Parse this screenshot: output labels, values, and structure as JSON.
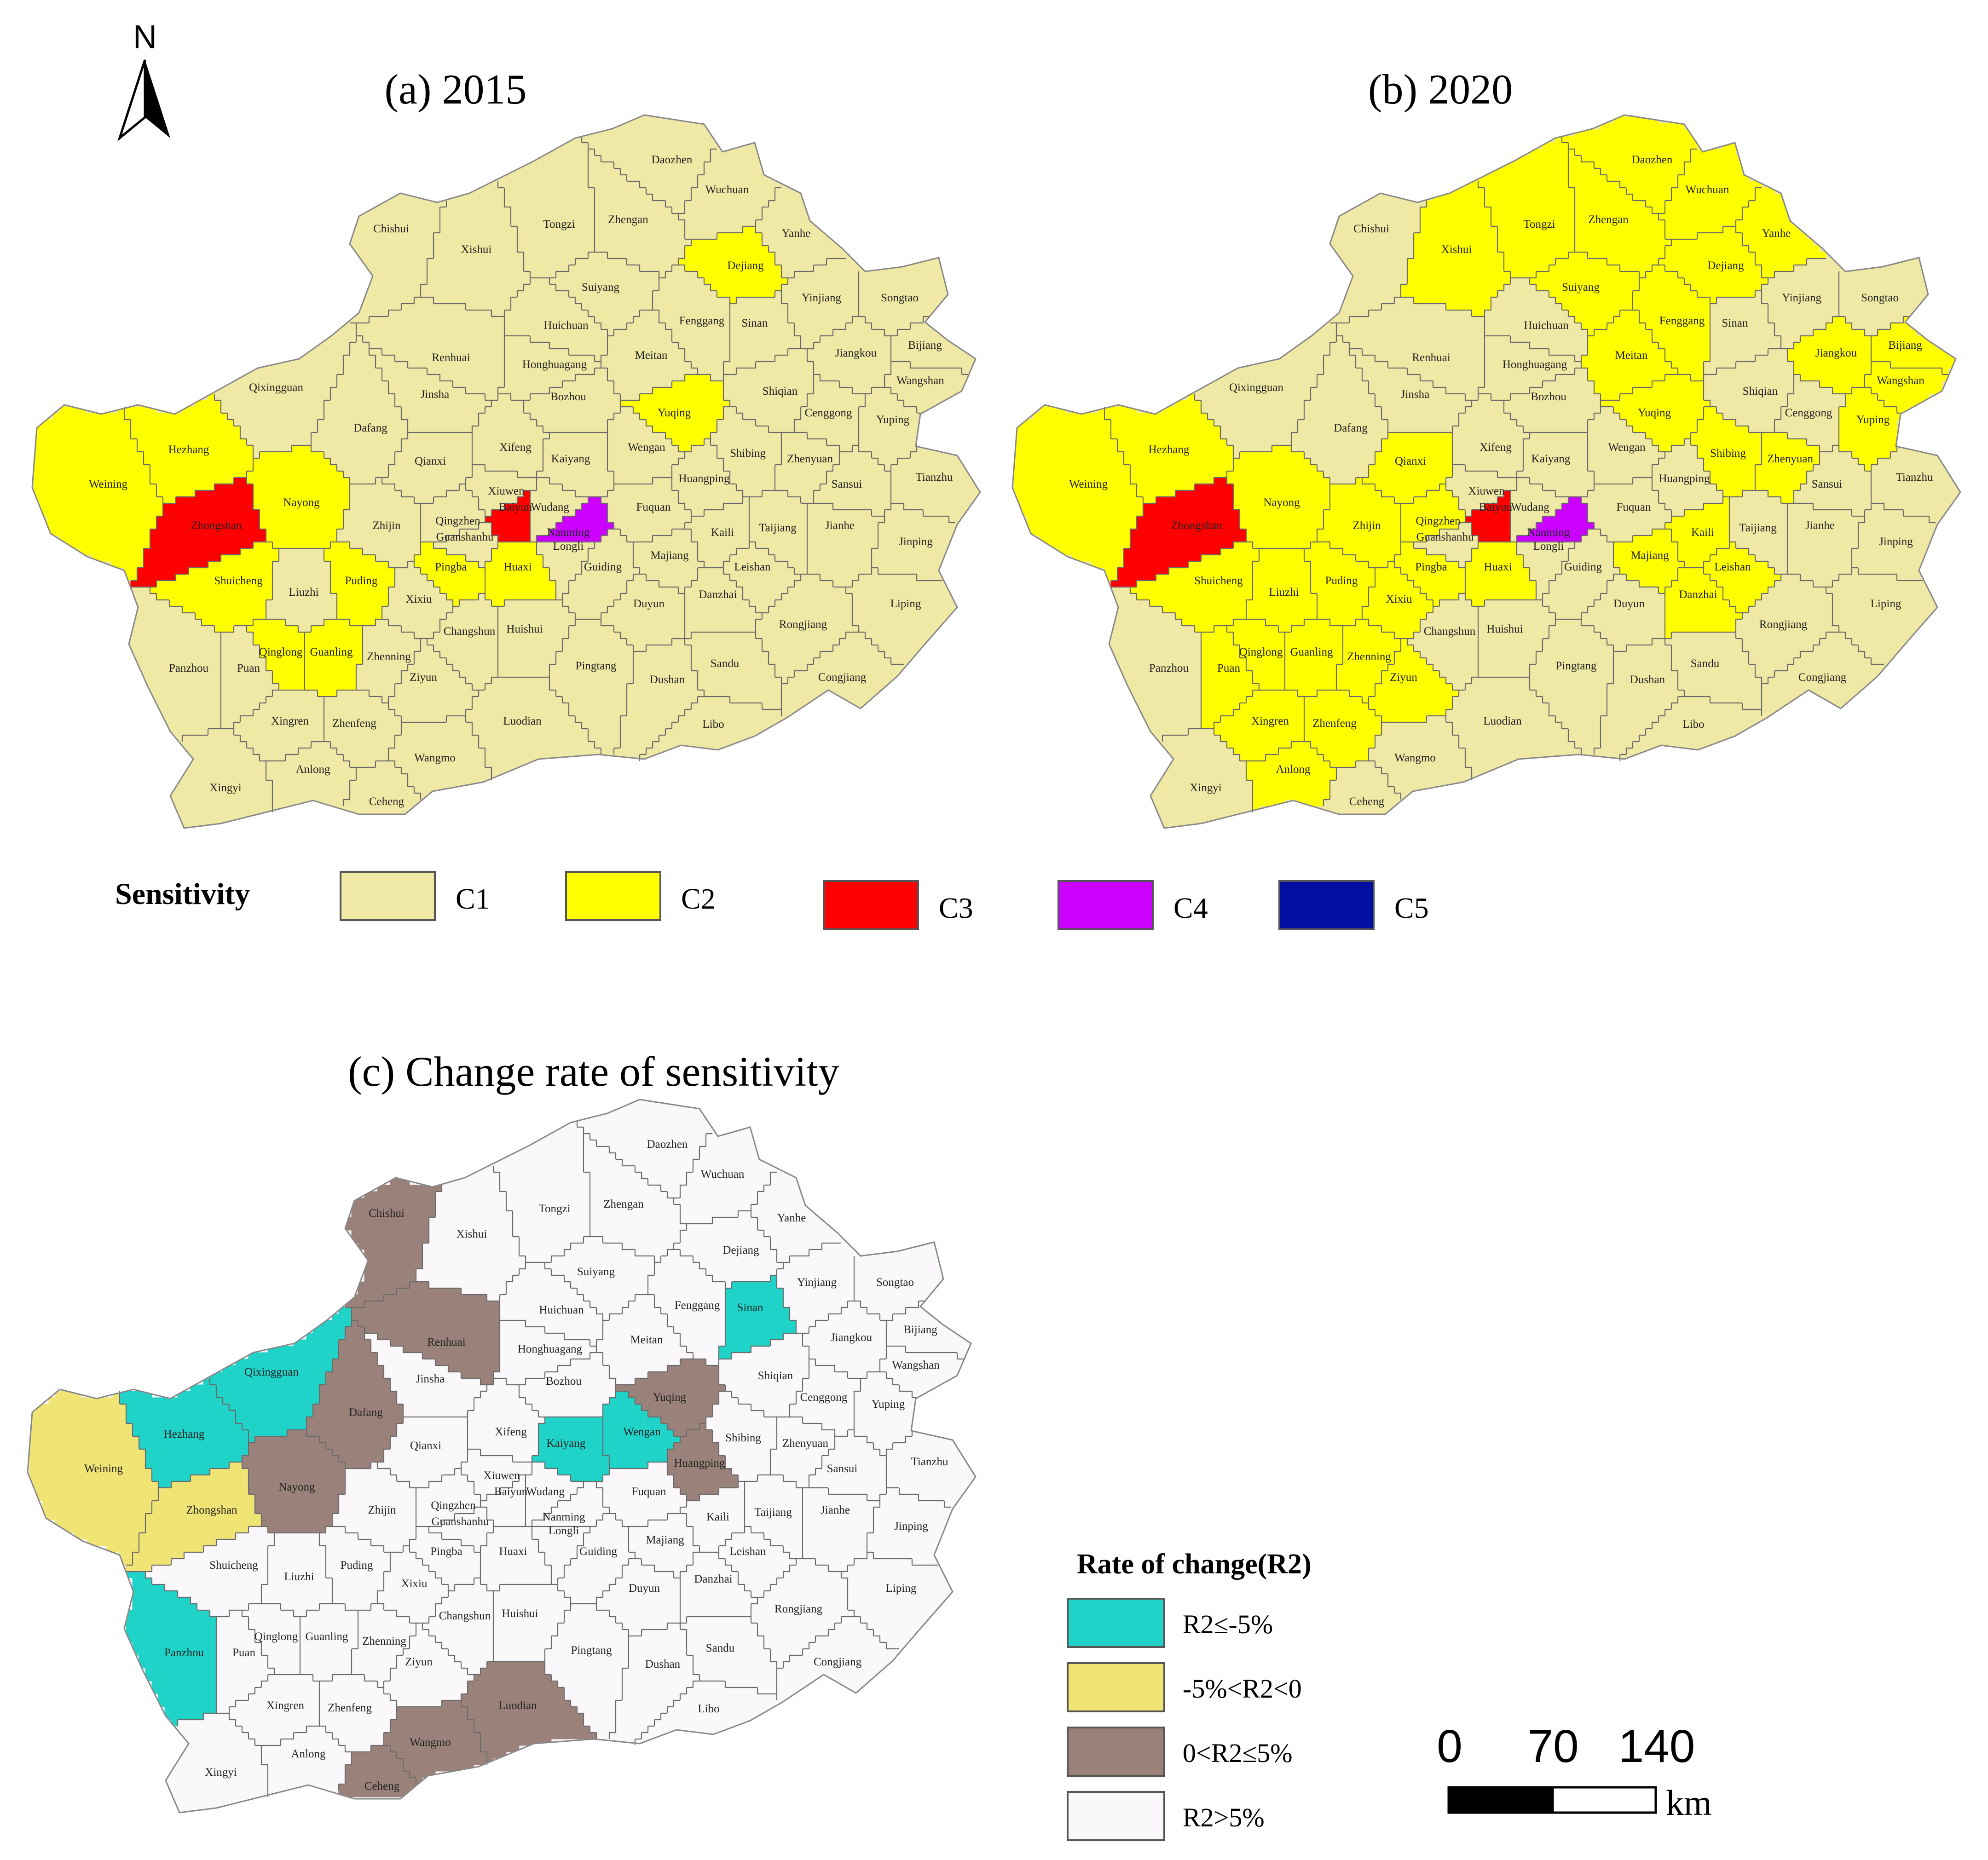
{
  "panels": [
    {
      "title": "(a) 2015",
      "base_color": "#f0e8a5",
      "labels": [
        "Daozhen",
        "Wuchuan",
        "Chishui",
        "Tongzi",
        "Zhengan",
        "Yanhe",
        "Xishui",
        "Dejiang",
        "Suiyang",
        "Yinjiang",
        "Songtao",
        "Huichuan",
        "Fenggang",
        "Sinan",
        "Bijiang",
        "Renhuai",
        "Honghuagang",
        "Meitan",
        "Jiangkou",
        "Wangshan",
        "Qixingguan",
        "Dafang",
        "Jinsha",
        "Bozhou",
        "Yuqing",
        "Shiqian",
        "Cenggong",
        "Yuping",
        "Hezhang",
        "Xifeng",
        "Kaiyang",
        "Wengan",
        "Shibing",
        "Zhenyuan",
        "Sansui",
        "Tianzhu",
        "Weining",
        "Qianxi",
        "Xiuwen",
        "Baiyun",
        "Wudang",
        "Huangping",
        "Nayong",
        "Zhongshan",
        "Zhijin",
        "Qingzhen",
        "Guanshanhu",
        "Nanming",
        "Fuquan",
        "Kaili",
        "Taijiang",
        "Jianhe",
        "Jinping",
        "Longli",
        "Huaxi",
        "Pingba",
        "Guiding",
        "Majiang",
        "Leishan",
        "Danzhai",
        "Shuicheng",
        "Puding",
        "Liuzhi",
        "Xixiu",
        "Changshun",
        "Huishui",
        "Duyun",
        "Rongjiang",
        "Liping",
        "Qinglong",
        "Guanling",
        "Zhenning",
        "Panzhou",
        "Puan",
        "Ziyun",
        "Pingtang",
        "Sandu",
        "Congjiang",
        "Dushan",
        "Xingren",
        "Zhenfeng",
        "Luodian",
        "Libo",
        "Anlong",
        "Wangmo",
        "Xingyi",
        "Ceheng"
      ],
      "highlight_counties": [
        {
          "name": "Weining",
          "class": "C2"
        },
        {
          "name": "Hezhang",
          "class": "C2"
        },
        {
          "name": "Nayong",
          "class": "C2"
        },
        {
          "name": "Shuicheng",
          "class": "C2"
        },
        {
          "name": "Zhongshan",
          "class": "C3"
        },
        {
          "name": "Puding",
          "class": "C2"
        },
        {
          "name": "Guanling",
          "class": "C2"
        },
        {
          "name": "Qinglong",
          "class": "C2"
        },
        {
          "name": "Pingba",
          "class": "C2"
        },
        {
          "name": "Huaxi",
          "class": "C2"
        },
        {
          "name": "Dejiang",
          "class": "C2"
        },
        {
          "name": "Yuqing",
          "class": "C2"
        },
        {
          "name": "Baiyun",
          "class": "C3"
        },
        {
          "name": "Nanming",
          "class": "C4"
        }
      ]
    },
    {
      "title": "(b) 2020",
      "base_color": "#f0e8a5",
      "highlight_counties": [
        {
          "name": "Weining",
          "class": "C2"
        },
        {
          "name": "Hezhang",
          "class": "C2"
        },
        {
          "name": "Nayong",
          "class": "C2"
        },
        {
          "name": "Shuicheng",
          "class": "C2"
        },
        {
          "name": "Zhongshan",
          "class": "C3"
        },
        {
          "name": "Qianxi",
          "class": "C2"
        },
        {
          "name": "Zhijin",
          "class": "C2"
        },
        {
          "name": "Puding",
          "class": "C2"
        },
        {
          "name": "Liuzhi",
          "class": "C2"
        },
        {
          "name": "Xixiu",
          "class": "C2"
        },
        {
          "name": "Qinglong",
          "class": "C2"
        },
        {
          "name": "Guanling",
          "class": "C2"
        },
        {
          "name": "Zhenning",
          "class": "C2"
        },
        {
          "name": "Puan",
          "class": "C2"
        },
        {
          "name": "Xingren",
          "class": "C2"
        },
        {
          "name": "Zhenfeng",
          "class": "C2"
        },
        {
          "name": "Anlong",
          "class": "C2"
        },
        {
          "name": "Ziyun",
          "class": "C2"
        },
        {
          "name": "Xishui",
          "class": "C2"
        },
        {
          "name": "Tongzi",
          "class": "C2"
        },
        {
          "name": "Zhengan",
          "class": "C2"
        },
        {
          "name": "Daozhen",
          "class": "C2"
        },
        {
          "name": "Wuchuan",
          "class": "C2"
        },
        {
          "name": "Yanhe",
          "class": "C2"
        },
        {
          "name": "Dejiang",
          "class": "C2"
        },
        {
          "name": "Suiyang",
          "class": "C2"
        },
        {
          "name": "Fenggang",
          "class": "C2"
        },
        {
          "name": "Meitan",
          "class": "C2"
        },
        {
          "name": "Yuqing",
          "class": "C2"
        },
        {
          "name": "Jiangkou",
          "class": "C2"
        },
        {
          "name": "Wangshan",
          "class": "C2"
        },
        {
          "name": "Bijiang",
          "class": "C2"
        },
        {
          "name": "Yuping",
          "class": "C2"
        },
        {
          "name": "Shibing",
          "class": "C2"
        },
        {
          "name": "Zhenyuan",
          "class": "C2"
        },
        {
          "name": "Kaili",
          "class": "C2"
        },
        {
          "name": "Majiang",
          "class": "C2"
        },
        {
          "name": "Leishan",
          "class": "C2"
        },
        {
          "name": "Danzhai",
          "class": "C2"
        },
        {
          "name": "Pingba",
          "class": "C2"
        },
        {
          "name": "Huaxi",
          "class": "C2"
        },
        {
          "name": "Qingzhen",
          "class": "C2"
        },
        {
          "name": "Baiyun",
          "class": "C3"
        },
        {
          "name": "Nanming",
          "class": "C4"
        }
      ]
    },
    {
      "title": "(c) Change rate of sensitivity",
      "base_color": "#fbf8fc",
      "highlight_counties": [
        {
          "name": "Weining",
          "class": "R2_yellow"
        },
        {
          "name": "Zhongshan",
          "class": "R2_yellow"
        },
        {
          "name": "Hezhang",
          "class": "R2_cyan"
        },
        {
          "name": "Qixingguan",
          "class": "R2_cyan"
        },
        {
          "name": "Kaiyang",
          "class": "R2_cyan"
        },
        {
          "name": "Wengan",
          "class": "R2_cyan"
        },
        {
          "name": "Sinan",
          "class": "R2_cyan"
        },
        {
          "name": "Panzhou",
          "class": "R2_cyan"
        },
        {
          "name": "Chishui",
          "class": "R2_brown"
        },
        {
          "name": "Renhuai",
          "class": "R2_brown"
        },
        {
          "name": "Dafang",
          "class": "R2_brown"
        },
        {
          "name": "Nayong",
          "class": "R2_brown"
        },
        {
          "name": "Yuqing",
          "class": "R2_brown"
        },
        {
          "name": "Huangping",
          "class": "R2_brown"
        },
        {
          "name": "Wangmo",
          "class": "R2_brown"
        },
        {
          "name": "Luodian",
          "class": "R2_brown"
        },
        {
          "name": "Ceheng",
          "class": "R2_brown"
        }
      ]
    }
  ],
  "north_arrow": {
    "label": "N"
  },
  "legend_sensitivity": {
    "title": "Sensitivity",
    "items": [
      {
        "label": "C1",
        "color": "#f0e8a5"
      },
      {
        "label": "C2",
        "color": "#ffff00"
      },
      {
        "label": "C3",
        "color": "#ff0000"
      },
      {
        "label": "C4",
        "color": "#cc00ff"
      },
      {
        "label": "C5",
        "color": "#000fa0"
      }
    ]
  },
  "legend_change": {
    "title": "Rate of change(R2)",
    "items": [
      {
        "label": "R2≤-5%",
        "color": "#1fd3c9"
      },
      {
        "label": "-5%<R2<0",
        "color": "#f0e474"
      },
      {
        "label": "0<R2≤5%",
        "color": "#9a827b"
      },
      {
        "label": "R2>5%",
        "color": "#fbf8fc"
      }
    ]
  },
  "scale_bar": {
    "ticks": [
      "0",
      "70",
      "140"
    ],
    "unit": "km"
  },
  "colors": {
    "C1": "#f0e8a5",
    "C2": "#ffff00",
    "C3": "#ff0000",
    "C4": "#cc00ff",
    "C5": "#000fa0",
    "R2_cyan": "#1fd3c9",
    "R2_yellow": "#f0e474",
    "R2_brown": "#9a827b",
    "R2_white": "#fbf8fc"
  }
}
